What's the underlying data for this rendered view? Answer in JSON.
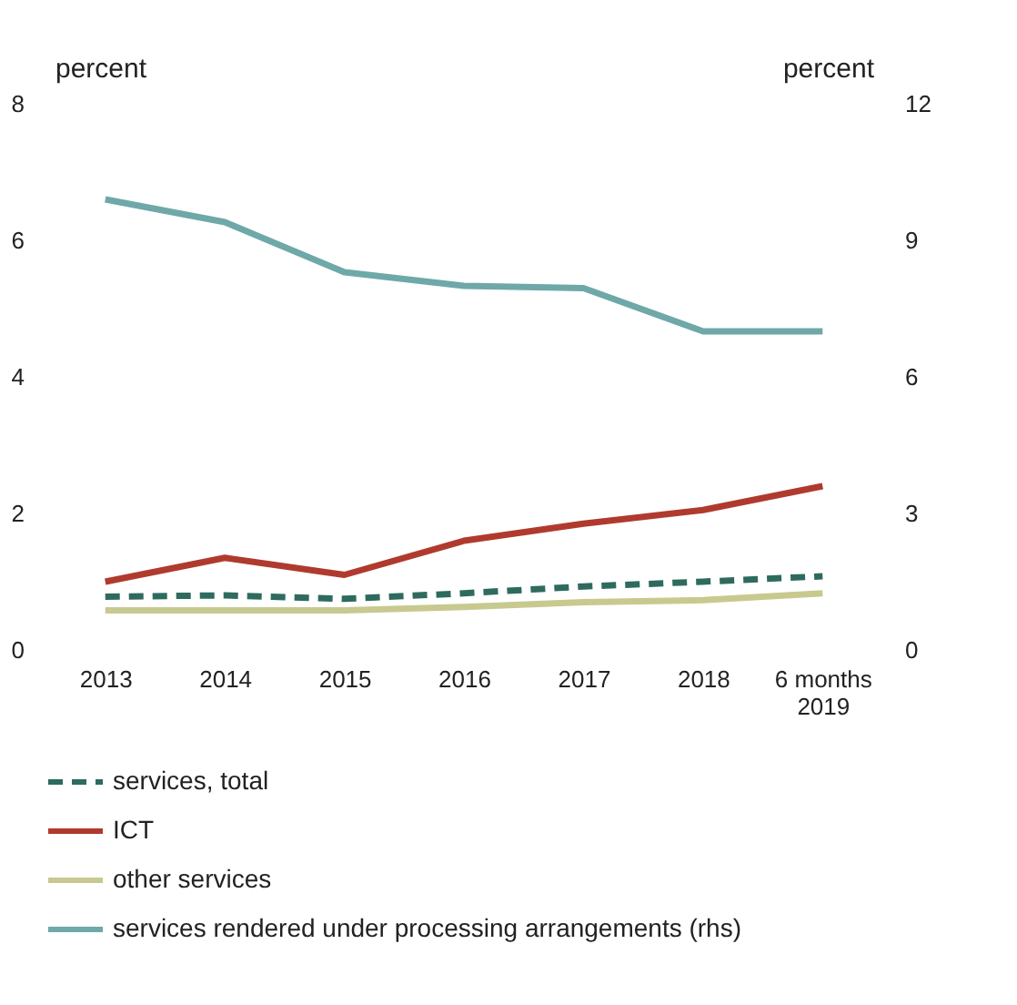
{
  "chart_data": {
    "type": "line",
    "ylabel": "percent",
    "y2label": "percent",
    "categories": [
      "2013",
      "2014",
      "2015",
      "2016",
      "2017",
      "2018",
      "6 months\n2019"
    ],
    "ylim": [
      0,
      8
    ],
    "yticks": [
      0,
      2,
      4,
      6,
      8
    ],
    "y2lim": [
      0,
      12
    ],
    "y2ticks": [
      0,
      3,
      6,
      9,
      12
    ],
    "grid": false,
    "legend": "bottom",
    "marker": "none",
    "series": [
      {
        "name": "services, total",
        "color": "#2e6b5e",
        "line_style": "dashed",
        "values": [
          0.78,
          0.8,
          0.75,
          0.83,
          0.93,
          1.0,
          1.08
        ]
      },
      {
        "name": "ICT",
        "color": "#b03a2e",
        "line_style": "solid",
        "values": [
          1.0,
          1.35,
          1.1,
          1.6,
          1.85,
          2.05,
          2.4
        ]
      },
      {
        "name": "other services",
        "color": "#c8c98f",
        "line_style": "solid",
        "values": [
          0.58,
          0.58,
          0.58,
          0.63,
          0.7,
          0.73,
          0.83
        ]
      },
      {
        "name": "services rendered under processing arrangements (rhs)",
        "color": "#6fa8a8",
        "line_style": "solid",
        "axis": "y2",
        "values": [
          9.9,
          9.4,
          8.3,
          8.0,
          7.95,
          7.0,
          7.0
        ]
      }
    ]
  }
}
